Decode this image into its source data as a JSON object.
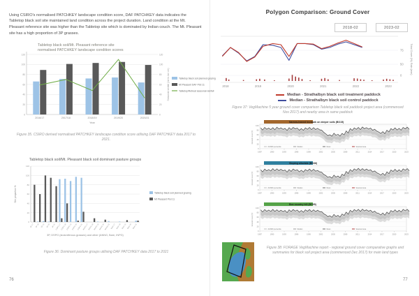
{
  "left_page": {
    "intro": "Using CSIRO's normalised PATCHKEY landscape condition score, DAF PATCHKEY data indicates the Tabletop black soil site maintained land condition across the project duration. Land condition at the Mt. Pleasant reference site was higher than the Tabletop site which is dominated by Indian couch. The Mt. Pleasant site has a high proportion of 3P grasses.",
    "figure35_caption": "Figure 35. CSIRO derived normalised PATCHKEY landscape condition score utilising DAF PATCHKEY data 2017 to 2021.",
    "figure36_caption": "Figure 36: Dominant pasture groups utilising DAF PATCHKEY data 2017 to 2021",
    "page_number": "76"
  },
  "right_page": {
    "title": "Polygon Comparison: Ground Cover",
    "date_start_label": "2018-02",
    "date_end_label": "2023-02",
    "figure37_caption": "Figure 37: VegMachine 5 year ground cover comparison Tabletop black soil paddock project area (commenced Nov 2017) and nearby area in same paddock",
    "figure38_caption": "Figure 38: FORAGE VegMachine report - regional ground cover comparative graphs and summaries for black soil project area (commenced Dec 2017) for main land types",
    "page_number": "77"
  },
  "colors": {
    "bar_blue": "#9dc3e6",
    "bar_dark": "#595959",
    "line_green": "#70ad47",
    "line_red": "#c0392b",
    "line_blue": "#3f4d9e",
    "rain_bar": "#a63d3d",
    "map_green": "#55a84f",
    "map_brown": "#b07a35",
    "map_blue": "#4a90c4",
    "map_outline": "#111111"
  },
  "chart_data": [
    {
      "id": "patchkey_condition",
      "type": "bar",
      "title_line1": "Tabletop black soil/Mt. Pleasant reference site",
      "title_line2": "normalised PATCHKEY landscape condition scores",
      "categories": [
        "2016/17",
        "2017/18",
        "2018/19",
        "2019/20",
        "2020/21"
      ],
      "series": [
        {
          "name": "Tabletop black soil planned grazing",
          "type": "bar",
          "color": "#9dc3e6",
          "values": [
            66,
            71,
            72,
            74,
            64
          ]
        },
        {
          "name": "Mt Pleasant DAF Plot 11",
          "type": "bar",
          "color": "#595959",
          "values": [
            89,
            101,
            103,
            105,
            99
          ]
        },
        {
          "name": "Tabletop/Retreat seasonal rainfall",
          "type": "line",
          "color": "#70ad47",
          "values": [
            59,
            70,
            48,
            110,
            33
          ]
        }
      ],
      "xlabel": "Year",
      "ylabel_right": "Seasonal rainfall (Jul to Jun cm)",
      "ylim": [
        0,
        120
      ],
      "ytick_step": 20,
      "legend_position": "right",
      "grid": true
    },
    {
      "id": "pasture_groups",
      "type": "bar",
      "title": "Tabletop black soil/Mt. Pleasant black soil dominant pasture groups",
      "categories": [
        "3P 17",
        "3P 18",
        "3P 19",
        "3P 20",
        "3P 21",
        "DSPG 17",
        "DSPG 18",
        "DSPG 19",
        "DSPG 20",
        "DSPG 21",
        "ANNG 17",
        "ANNG 18",
        "ANNG 19",
        "ANNG 20",
        "ANNG 21",
        "Bare 17",
        "Bare 18",
        "Bare 19",
        "Bare 20",
        "Bare 21"
      ],
      "series": [
        {
          "name": "Tabletop black soil planned grazing",
          "color": "#9dc3e6",
          "values": [
            0,
            1,
            2,
            1,
            0,
            92,
            93,
            88,
            97,
            95,
            0,
            0,
            1,
            0,
            2,
            0,
            1,
            0,
            0,
            3
          ]
        },
        {
          "name": "Mt Pleasant Plot 11",
          "color": "#595959",
          "values": [
            80,
            60,
            100,
            95,
            77,
            8,
            40,
            0,
            3,
            22,
            0,
            8,
            0,
            5,
            0,
            0,
            0,
            4,
            0,
            3
          ]
        }
      ],
      "xlabel": "3P, DSPG (stoloniferous grasses) and other (ANNG, Bare, INPG)",
      "ylabel": "Site proportion %",
      "ylim": [
        0,
        120
      ],
      "ytick_step": 20,
      "legend_position": "right",
      "grid": true
    },
    {
      "id": "ground_cover_comparison",
      "type": "line",
      "x": [
        2017.9,
        2018.15,
        2018.4,
        2018.65,
        2018.9,
        2019.15,
        2019.45,
        2019.7,
        2019.95,
        2020.2,
        2020.45,
        2020.7,
        2020.95,
        2021.2,
        2021.45,
        2021.7,
        2021.95,
        2022.2
      ],
      "series": [
        {
          "name": "Median - Strathalbyn black soil treatment paddock",
          "color": "#c0392b",
          "values": [
            64,
            80,
            71,
            55,
            63,
            82,
            87,
            85,
            64,
            87,
            87,
            86,
            78,
            82,
            88,
            93,
            87,
            81
          ]
        },
        {
          "name": "Median - Strathalbyn black soil control paddock",
          "color": "#3f4d9e",
          "values": [
            65,
            80,
            70,
            56,
            64,
            85,
            84,
            80,
            57,
            87,
            87,
            85,
            77,
            80,
            86,
            90,
            85,
            80
          ]
        }
      ],
      "rain_mm": [
        [
          2018.02,
          12
        ],
        [
          2018.1,
          6
        ],
        [
          2018.55,
          4
        ],
        [
          2018.95,
          7
        ],
        [
          2019.05,
          9
        ],
        [
          2019.2,
          6
        ],
        [
          2019.5,
          3
        ],
        [
          2019.95,
          10
        ],
        [
          2020.05,
          25
        ],
        [
          2020.15,
          18
        ],
        [
          2020.25,
          14
        ],
        [
          2020.35,
          8
        ],
        [
          2020.6,
          3
        ],
        [
          2020.95,
          9
        ],
        [
          2021.05,
          12
        ],
        [
          2021.15,
          7
        ],
        [
          2021.5,
          4
        ],
        [
          2021.95,
          11
        ],
        [
          2022.05,
          10
        ],
        [
          2022.15,
          7
        ],
        [
          2022.25,
          5
        ],
        [
          2022.5,
          3
        ],
        [
          2022.85,
          6
        ],
        [
          2022.95,
          9
        ],
        [
          2023.05,
          7
        ],
        [
          2023.15,
          5
        ]
      ],
      "xlim": [
        2017.85,
        2023.3
      ],
      "xticks": [
        2018,
        2019,
        2020,
        2021,
        2022,
        2023
      ],
      "yticks_right": [
        75,
        50,
        0
      ],
      "ylabel_right": "Total Cover (%)   Rain (mm)",
      "legend": [
        {
          "label": "Median - Strathalbyn black soil treatment paddock",
          "color": "#c0392b"
        },
        {
          "label": "Median - Strathalbyn black soil control paddock",
          "color": "#3f4d9e"
        }
      ],
      "legend_position": "bottom",
      "grid": true
    },
    {
      "id": "vegmachine_bo15",
      "type": "line",
      "title": "Narrow-leaved ironbark on deeper soils (BO15)",
      "header_color": "#a2662c",
      "ylabel": "Ground cover (%)",
      "ylim": [
        0,
        100
      ],
      "yticks": [
        0,
        20,
        40,
        60,
        80,
        100
      ],
      "x_years": [
        1987,
        2023
      ],
      "xtick_step": 3,
      "legend_items": [
        "20-80th percentile",
        "Median",
        "Mean",
        "Selected area"
      ],
      "values": [
        88,
        90,
        87,
        89,
        91,
        88,
        86,
        89,
        90,
        87,
        85,
        88,
        90,
        89,
        86,
        78,
        62,
        58,
        65,
        60,
        64,
        75,
        85,
        88,
        90,
        92,
        89,
        87,
        82,
        70,
        72,
        78,
        85,
        88,
        86,
        90,
        91
      ]
    },
    {
      "id": "vegmachine_bo36",
      "type": "line",
      "title": "Sloping alluvials (BO36)",
      "header_color": "#2e7f9e",
      "ylabel": "Ground cover (%)",
      "ylim": [
        0,
        100
      ],
      "yticks": [
        0,
        20,
        40,
        60,
        80,
        100
      ],
      "x_years": [
        1987,
        2023
      ],
      "xtick_step": 3,
      "legend_items": [
        "20-80th percentile",
        "Median",
        "Mean",
        "Selected area"
      ],
      "values": [
        85,
        88,
        86,
        90,
        89,
        87,
        84,
        86,
        88,
        85,
        83,
        86,
        88,
        87,
        82,
        74,
        60,
        55,
        62,
        58,
        66,
        78,
        86,
        89,
        91,
        90,
        88,
        85,
        80,
        68,
        70,
        76,
        84,
        87,
        85,
        89,
        90
      ]
    },
    {
      "id": "vegmachine_bo05",
      "type": "line",
      "title": "Box country hill (BO05)",
      "header_color": "#55a348",
      "ylabel": "Ground cover (%)",
      "ylim": [
        0,
        100
      ],
      "yticks": [
        0,
        20,
        40,
        60,
        80,
        100
      ],
      "x_years": [
        1987,
        2023
      ],
      "xtick_step": 3,
      "legend_items": [
        "20-80th percentile",
        "Median",
        "Mean",
        "Selected area"
      ],
      "values": [
        90,
        91,
        89,
        92,
        90,
        88,
        87,
        90,
        91,
        89,
        87,
        90,
        91,
        90,
        88,
        82,
        68,
        64,
        70,
        66,
        72,
        80,
        88,
        91,
        92,
        93,
        90,
        88,
        84,
        74,
        76,
        80,
        87,
        90,
        88,
        92,
        92
      ]
    }
  ]
}
